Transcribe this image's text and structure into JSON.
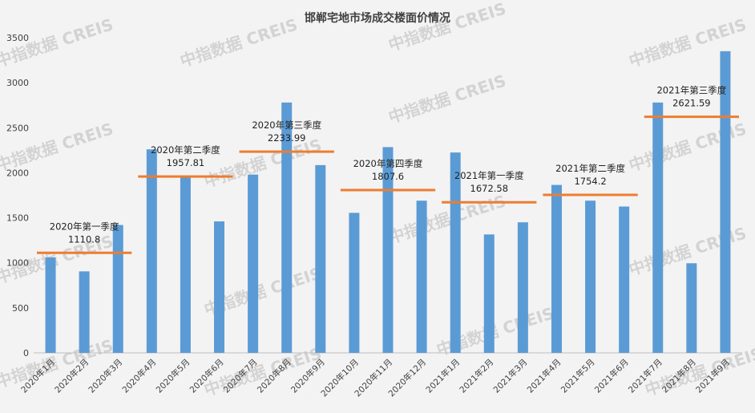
{
  "chart_data": {
    "type": "bar",
    "title": "邯郸宅地市场成交楼面价情况",
    "ylim": [
      0,
      3500
    ],
    "yticks": [
      0,
      500,
      1000,
      1500,
      2000,
      2500,
      3000,
      3500
    ],
    "categories": [
      "2020年1月",
      "2020年2月",
      "2020年3月",
      "2020年4月",
      "2020年5月",
      "2020年6月",
      "2020年7月",
      "2020年8月",
      "2020年9月",
      "2020年10月",
      "2020年11月",
      "2020年12月",
      "2021年1月",
      "2021年2月",
      "2021年3月",
      "2021年4月",
      "2021年5月",
      "2021年6月",
      "2021年7月",
      "2021年8月",
      "2021年9月"
    ],
    "values": [
      1060,
      905,
      1420,
      2260,
      1960,
      1460,
      1980,
      2780,
      2085,
      1555,
      2285,
      1690,
      2225,
      1315,
      1450,
      1865,
      1690,
      1625,
      2780,
      995,
      3350
    ],
    "bar_color": "#5b9bd5",
    "quarters": [
      {
        "label": "2020年第一季度",
        "value_text": "1110.8",
        "value": 1110.8,
        "start": 0,
        "end": 2
      },
      {
        "label": "2020年第二季度",
        "value_text": "1957.81",
        "value": 1957.81,
        "start": 3,
        "end": 5
      },
      {
        "label": "2020年第三季度",
        "value_text": "2233.99",
        "value": 2233.99,
        "start": 6,
        "end": 8
      },
      {
        "label": "2020年第四季度",
        "value_text": "1807.6",
        "value": 1807.6,
        "start": 9,
        "end": 11
      },
      {
        "label": "2021年第一季度",
        "value_text": "1672.58",
        "value": 1672.58,
        "start": 12,
        "end": 14
      },
      {
        "label": "2021年第二季度",
        "value_text": "1754.2",
        "value": 1754.2,
        "start": 15,
        "end": 17
      },
      {
        "label": "2021年第三季度",
        "value_text": "2621.59",
        "value": 2621.59,
        "start": 18,
        "end": 20
      }
    ],
    "quarter_line_color": "#ed7d31",
    "grid": false,
    "legend": "none"
  },
  "watermark_text": "中指数据 CREIS"
}
